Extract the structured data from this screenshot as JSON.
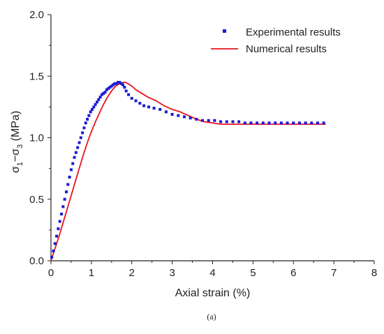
{
  "caption": "(a)",
  "chart_data": {
    "type": "line",
    "title": "",
    "xlabel": "Axial strain (%)",
    "ylabel_parts": {
      "sigma1": "σ",
      "sub1": "1",
      "dash": "−σ",
      "sub3": "3",
      "unit": " (MPa)"
    },
    "xlim": [
      0,
      8
    ],
    "ylim": [
      0,
      2.0
    ],
    "xticks": [
      0,
      1,
      2,
      3,
      4,
      5,
      6,
      7,
      8
    ],
    "yticks": [
      0.0,
      0.5,
      1.0,
      1.5,
      2.0
    ],
    "xtick_labels": [
      "0",
      "1",
      "2",
      "3",
      "4",
      "5",
      "6",
      "7",
      "8"
    ],
    "ytick_labels": [
      "0.0",
      "0.5",
      "1.0",
      "1.5",
      "2.0"
    ],
    "grid": false,
    "legend_position": "top-right",
    "colors": {
      "experimental": "#1a1ad6",
      "numerical": "#e8141e",
      "axis": "#222222"
    },
    "series": [
      {
        "name": "Experimental results",
        "kind": "scatter",
        "marker": "square",
        "x": [
          0.02,
          0.06,
          0.1,
          0.14,
          0.18,
          0.22,
          0.26,
          0.3,
          0.34,
          0.38,
          0.42,
          0.46,
          0.5,
          0.54,
          0.58,
          0.62,
          0.66,
          0.7,
          0.74,
          0.78,
          0.82,
          0.86,
          0.9,
          0.94,
          0.98,
          1.02,
          1.06,
          1.1,
          1.14,
          1.18,
          1.22,
          1.26,
          1.3,
          1.34,
          1.38,
          1.42,
          1.46,
          1.5,
          1.54,
          1.58,
          1.62,
          1.66,
          1.7,
          1.74,
          1.78,
          1.82,
          1.86,
          1.92,
          2.0,
          2.1,
          2.2,
          2.3,
          2.42,
          2.55,
          2.7,
          2.85,
          3.0,
          3.15,
          3.3,
          3.45,
          3.6,
          3.75,
          3.9,
          4.05,
          4.2,
          4.35,
          4.5,
          4.65,
          4.8,
          4.95,
          5.1,
          5.25,
          5.4,
          5.55,
          5.7,
          5.85,
          6.0,
          6.15,
          6.3,
          6.45,
          6.6,
          6.75
        ],
        "y": [
          0.03,
          0.08,
          0.14,
          0.2,
          0.26,
          0.32,
          0.38,
          0.44,
          0.5,
          0.56,
          0.62,
          0.68,
          0.74,
          0.79,
          0.84,
          0.88,
          0.92,
          0.96,
          1.0,
          1.04,
          1.08,
          1.12,
          1.15,
          1.18,
          1.21,
          1.23,
          1.25,
          1.27,
          1.29,
          1.31,
          1.33,
          1.35,
          1.36,
          1.37,
          1.39,
          1.4,
          1.41,
          1.42,
          1.43,
          1.44,
          1.44,
          1.45,
          1.45,
          1.44,
          1.43,
          1.41,
          1.38,
          1.35,
          1.32,
          1.3,
          1.28,
          1.26,
          1.25,
          1.24,
          1.23,
          1.21,
          1.19,
          1.18,
          1.17,
          1.16,
          1.15,
          1.14,
          1.14,
          1.14,
          1.13,
          1.13,
          1.13,
          1.13,
          1.12,
          1.12,
          1.12,
          1.12,
          1.12,
          1.12,
          1.12,
          1.12,
          1.12,
          1.12,
          1.12,
          1.12,
          1.12,
          1.12
        ]
      },
      {
        "name": "Numerical results",
        "kind": "line",
        "x": [
          0.0,
          0.1,
          0.2,
          0.3,
          0.4,
          0.5,
          0.6,
          0.7,
          0.8,
          0.9,
          1.0,
          1.1,
          1.2,
          1.3,
          1.4,
          1.5,
          1.6,
          1.7,
          1.8,
          1.85,
          1.9,
          2.0,
          2.1,
          2.2,
          2.4,
          2.6,
          2.8,
          3.0,
          3.2,
          3.4,
          3.6,
          3.8,
          4.0,
          4.2,
          4.4,
          4.6,
          5.0,
          5.5,
          6.0,
          6.5,
          6.8
        ],
        "y": [
          0.0,
          0.1,
          0.2,
          0.31,
          0.42,
          0.53,
          0.64,
          0.75,
          0.86,
          0.96,
          1.05,
          1.13,
          1.2,
          1.27,
          1.33,
          1.38,
          1.42,
          1.44,
          1.45,
          1.45,
          1.44,
          1.42,
          1.39,
          1.37,
          1.33,
          1.3,
          1.26,
          1.23,
          1.21,
          1.18,
          1.15,
          1.13,
          1.12,
          1.11,
          1.11,
          1.11,
          1.11,
          1.11,
          1.11,
          1.11,
          1.11
        ]
      }
    ]
  }
}
